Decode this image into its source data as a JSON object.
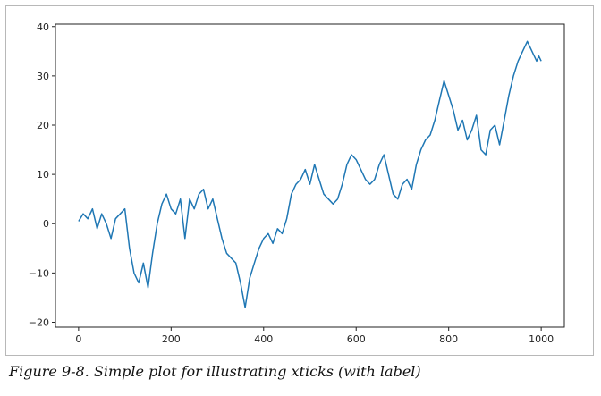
{
  "caption": "Figure 9-8. Simple plot for illustrating xticks (with label)",
  "chart_data": {
    "type": "line",
    "title": "",
    "xlabel": "",
    "ylabel": "",
    "xlim": [
      -50,
      1050
    ],
    "ylim": [
      -21,
      40.5
    ],
    "xticks": [
      0,
      200,
      400,
      600,
      800,
      1000
    ],
    "yticks": [
      -20,
      -10,
      0,
      10,
      20,
      30,
      40
    ],
    "grid": false,
    "line_color": "#1f77b4",
    "series": [
      {
        "x": [
          0,
          10,
          20,
          30,
          40,
          50,
          60,
          70,
          80,
          90,
          100,
          110,
          120,
          130,
          140,
          150,
          160,
          170,
          180,
          190,
          200,
          210,
          220,
          230,
          240,
          250,
          260,
          270,
          280,
          290,
          300,
          310,
          320,
          330,
          340,
          350,
          360,
          370,
          380,
          390,
          400,
          410,
          420,
          430,
          440,
          450,
          460,
          470,
          480,
          490,
          500,
          510,
          520,
          530,
          540,
          550,
          560,
          570,
          580,
          590,
          600,
          610,
          620,
          630,
          640,
          650,
          660,
          670,
          680,
          690,
          700,
          710,
          720,
          730,
          740,
          750,
          760,
          770,
          780,
          790,
          800,
          810,
          820,
          830,
          840,
          850,
          860,
          870,
          880,
          890,
          900,
          910,
          920,
          930,
          940,
          950,
          960,
          970,
          980,
          985,
          990,
          995,
          1000
        ],
        "y": [
          0.5,
          2,
          1,
          3,
          -1,
          2,
          0,
          -3,
          1,
          2,
          3,
          -5,
          -10,
          -12,
          -8,
          -13,
          -6,
          0,
          4,
          6,
          3,
          2,
          5,
          -3,
          5,
          3,
          6,
          7,
          3,
          5,
          1,
          -3,
          -6,
          -7,
          -8,
          -12,
          -17,
          -11,
          -8,
          -5,
          -3,
          -2,
          -4,
          -1,
          -2,
          1,
          6,
          8,
          9,
          11,
          8,
          12,
          9,
          6,
          5,
          4,
          5,
          8,
          12,
          14,
          13,
          11,
          9,
          8,
          9,
          12,
          14,
          10,
          6,
          5,
          8,
          9,
          7,
          12,
          15,
          17,
          18,
          21,
          25,
          29,
          26,
          23,
          19,
          21,
          17,
          19,
          22,
          15,
          14,
          19,
          20,
          16,
          21,
          26,
          30,
          33,
          35,
          37,
          35,
          34,
          33,
          34,
          33
        ]
      }
    ]
  }
}
